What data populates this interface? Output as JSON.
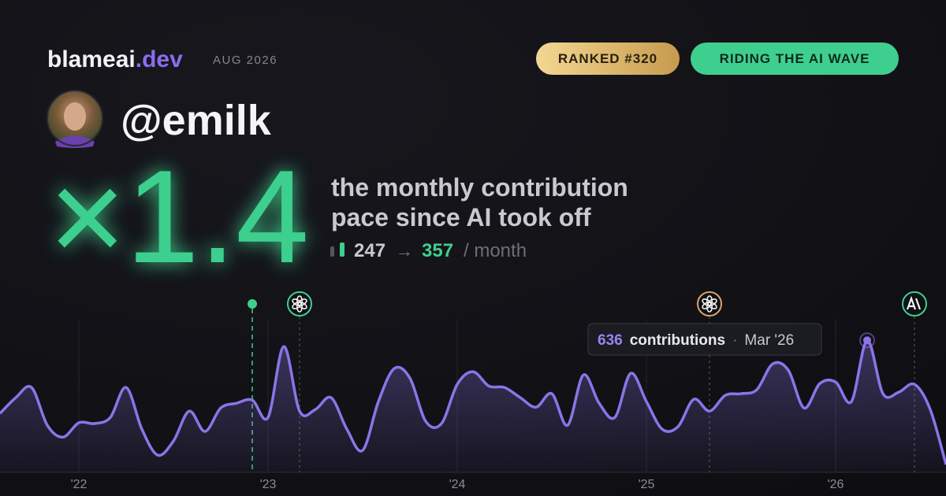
{
  "brand": {
    "name": "blameai",
    "tld": ".dev",
    "date": "AUG 2026"
  },
  "badges": [
    "RANKED #320",
    "RIDING THE AI WAVE"
  ],
  "username": "@emilk",
  "multiplier": "×1.4",
  "headline": [
    "the monthly contribution",
    "pace since AI took off"
  ],
  "pace": {
    "before": 247,
    "arrow": "→",
    "after": 357,
    "unit": "/ month"
  },
  "chart_data": {
    "type": "area",
    "color": "#8b74e8",
    "x": [
      "2021-08",
      "2021-09",
      "2021-10",
      "2021-11",
      "2021-12",
      "2022-01",
      "2022-02",
      "2022-03",
      "2022-04",
      "2022-05",
      "2022-06",
      "2022-07",
      "2022-08",
      "2022-09",
      "2022-10",
      "2022-11",
      "2022-12",
      "2023-01",
      "2023-02",
      "2023-03",
      "2023-04",
      "2023-05",
      "2023-06",
      "2023-07",
      "2023-08",
      "2023-09",
      "2023-10",
      "2023-11",
      "2023-12",
      "2024-01",
      "2024-02",
      "2024-03",
      "2024-04",
      "2024-05",
      "2024-06",
      "2024-07",
      "2024-08",
      "2024-09",
      "2024-10",
      "2024-11",
      "2024-12",
      "2025-01",
      "2025-02",
      "2025-03",
      "2025-04",
      "2025-05",
      "2025-06",
      "2025-07",
      "2025-08",
      "2025-09",
      "2025-10",
      "2025-11",
      "2025-12",
      "2026-01",
      "2026-02",
      "2026-03",
      "2026-04",
      "2026-05",
      "2026-06",
      "2026-07",
      "2026-08"
    ],
    "values": [
      284,
      360,
      409,
      227,
      170,
      239,
      235,
      265,
      409,
      208,
      83,
      151,
      295,
      197,
      310,
      333,
      348,
      265,
      606,
      295,
      303,
      360,
      208,
      106,
      341,
      500,
      454,
      246,
      235,
      424,
      485,
      416,
      409,
      360,
      314,
      379,
      227,
      469,
      333,
      265,
      477,
      341,
      208,
      220,
      352,
      295,
      371,
      379,
      398,
      522,
      492,
      310,
      428,
      435,
      341,
      636,
      379,
      386,
      424,
      303,
      38
    ],
    "ylim": [
      0,
      800
    ],
    "xticks": [
      {
        "value": "2022-01",
        "label": "'22"
      },
      {
        "value": "2023-01",
        "label": "'23"
      },
      {
        "value": "2024-01",
        "label": "'24"
      },
      {
        "value": "2025-01",
        "label": "'25"
      },
      {
        "value": "2026-01",
        "label": "'26"
      }
    ],
    "events": [
      "2022-12",
      "2023-03",
      "2025-05",
      "2026-06"
    ],
    "tooltip": {
      "unit": "contributions",
      "separator": "·",
      "date": "Mar '26"
    }
  }
}
